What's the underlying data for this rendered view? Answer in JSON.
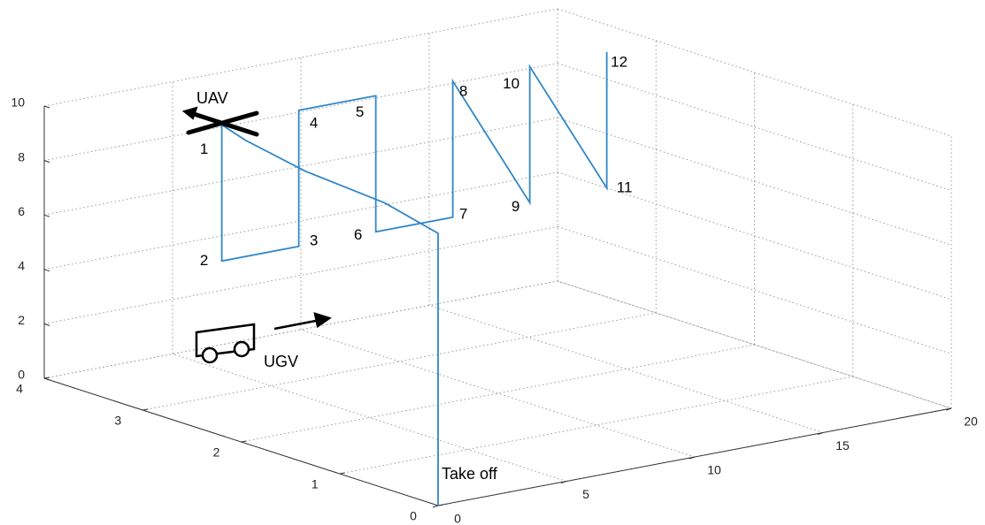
{
  "chart_data": {
    "type": "line3d",
    "xlim": [
      0,
      20
    ],
    "ylim": [
      0,
      4
    ],
    "zlim": [
      0,
      10
    ],
    "xticks": [
      0,
      5,
      10,
      15,
      20
    ],
    "yticks": [
      0,
      1,
      2,
      3,
      4
    ],
    "zticks": [
      0,
      2,
      4,
      6,
      8,
      10
    ],
    "grid": true,
    "series": [
      {
        "color": "#2f86c9",
        "x": [
          0,
          0,
          1,
          2.5,
          4,
          5,
          5,
          8,
          8,
          11,
          11,
          14,
          14,
          17,
          17,
          20,
          20
        ],
        "y": [
          0,
          0,
          0.8,
          2,
          3,
          3.5,
          3.5,
          3.5,
          3.5,
          3.5,
          3.5,
          3.5,
          3.5,
          3.5,
          3.5,
          3.5,
          3.5
        ],
        "z": [
          0,
          10,
          10,
          9.5,
          9.2,
          9,
          4,
          4,
          9,
          9,
          4,
          4,
          9,
          4,
          9,
          4,
          9
        ]
      }
    ],
    "point_labels": [
      {
        "text": "1",
        "point": 5
      },
      {
        "text": "2",
        "point": 6
      },
      {
        "text": "3",
        "point": 7
      },
      {
        "text": "4",
        "point": 8
      },
      {
        "text": "5",
        "point": 9
      },
      {
        "text": "6",
        "point": 10
      },
      {
        "text": "7",
        "point": 11
      },
      {
        "text": "8",
        "point": 12
      },
      {
        "text": "9",
        "point": 13
      },
      {
        "text": "10",
        "point": 14
      },
      {
        "text": "11",
        "point": 15
      },
      {
        "text": "12",
        "point": 16
      }
    ],
    "annotations": {
      "uav": "UAV",
      "ugv": "UGV",
      "takeoff": "Take off"
    }
  }
}
